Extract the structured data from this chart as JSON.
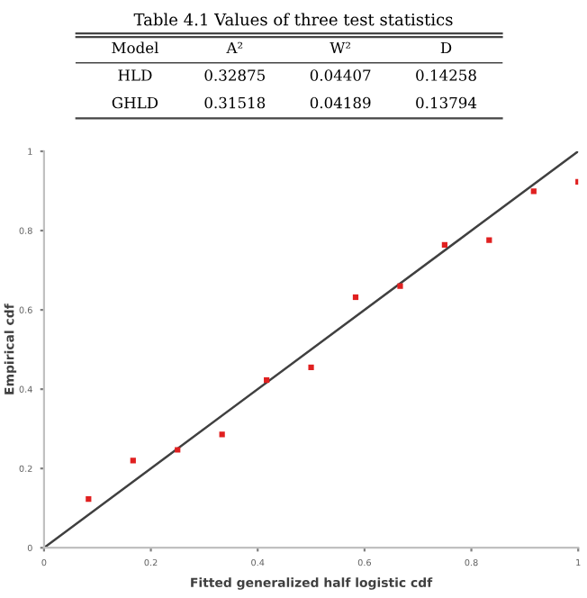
{
  "chart_data": {
    "type": "scatter",
    "title": "Table 4.1 Values of three test statistics",
    "annotations": [
      "Model",
      "A²",
      "W²",
      "D",
      "HLD",
      "0.32875",
      "0.04407",
      "0.14258",
      "GHLD",
      "0.31518",
      "0.04189",
      "0.13794"
    ],
    "xlabel": "Fitted generalized half logistic cdf",
    "ylabel": "Empirical cdf",
    "xlim": [
      0,
      1
    ],
    "ylim": [
      0,
      1
    ],
    "xticks": [
      0,
      0.2,
      0.4,
      0.6,
      0.8,
      1
    ],
    "yticks": [
      0,
      0.2,
      0.4,
      0.6,
      0.8,
      1
    ],
    "grid": false,
    "legend": false,
    "series": [
      {
        "marker": "square",
        "color": "#e02020",
        "x": [
          0.0833,
          0.1667,
          0.25,
          0.3333,
          0.4167,
          0.5,
          0.5833,
          0.6667,
          0.75,
          0.8333,
          0.9167,
          1.0
        ],
        "values": [
          0.123,
          0.22,
          0.247,
          0.286,
          0.423,
          0.455,
          0.632,
          0.66,
          0.764,
          0.776,
          0.899,
          0.923
        ]
      },
      {
        "type": "line",
        "color": "#404040",
        "x": [
          0,
          1
        ],
        "values": [
          0,
          1
        ]
      }
    ]
  }
}
